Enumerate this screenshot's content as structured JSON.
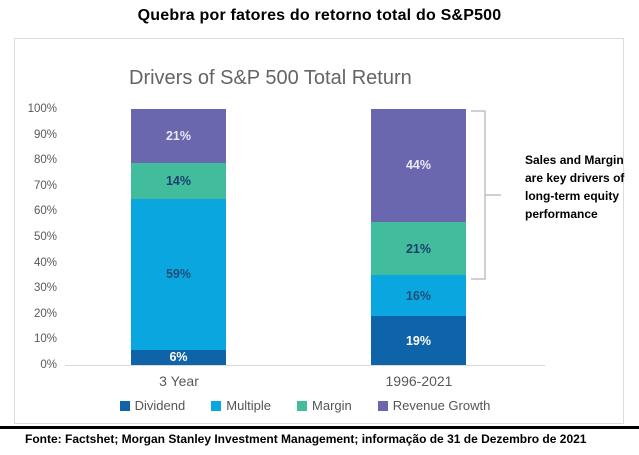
{
  "page": {
    "title": "Quebra por fatores do retorno total do S&P500",
    "footer": "Fonte: Factshet; Morgan Stanley Investment Management; informação de 31 de Dezembro de 2021"
  },
  "chart_data": {
    "type": "bar",
    "stacked": true,
    "title": "Drivers of S&P 500 Total Return",
    "title_color": "#646464",
    "categories": [
      "3 Year",
      "1996-2021"
    ],
    "series": [
      {
        "name": "Dividend",
        "values": [
          6,
          19
        ],
        "color": "#0e63a9",
        "label_color": "#ffffff"
      },
      {
        "name": "Multiple",
        "values": [
          59,
          16
        ],
        "color": "#0aa6e0",
        "label_color": "#1f4e79"
      },
      {
        "name": "Margin",
        "values": [
          14,
          21
        ],
        "color": "#41bd9e",
        "label_color": "#1d3e6b"
      },
      {
        "name": "Revenue Growth",
        "values": [
          21,
          44
        ],
        "color": "#6a67ae",
        "label_color": "#e9e9f6"
      }
    ],
    "ylim": [
      0,
      100
    ],
    "ytick_step": 10,
    "ytick_suffix": "%",
    "grid": false,
    "legend_position": "bottom",
    "annotation": {
      "lines": [
        "Sales and Margin",
        "are key drivers of",
        "long-term equity",
        "performance"
      ],
      "bracket_color": "#c0c0c0"
    }
  }
}
